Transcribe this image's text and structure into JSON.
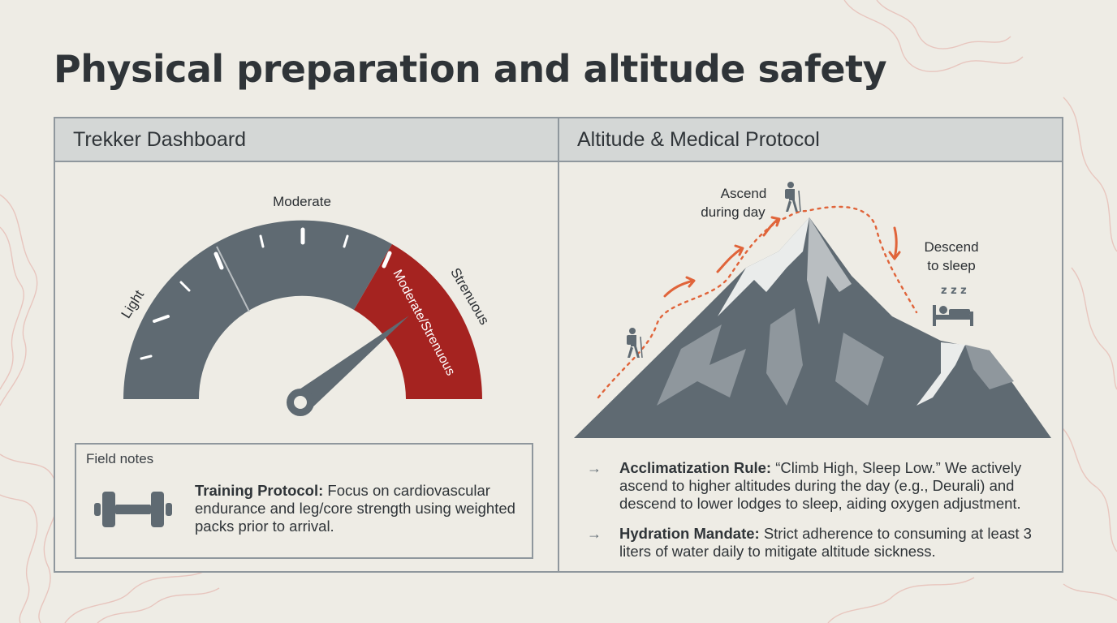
{
  "title": "Physical preparation and altitude safety",
  "left_panel": {
    "header": "Trekker Dashboard",
    "gauge": {
      "labels": [
        "Light",
        "Moderate",
        "Moderate/Strenuous",
        "Strenuous"
      ],
      "indicated_level": "Moderate/Strenuous"
    },
    "field_notes": {
      "label": "Field notes",
      "icon": "dumbbell-icon",
      "heading": "Training Protocol:",
      "text": " Focus on cardiovascular endurance and leg/core strength using weighted packs prior to arrival."
    }
  },
  "right_panel": {
    "header": "Altitude & Medical Protocol",
    "diagram": {
      "ascend_label": [
        "Ascend",
        "during day"
      ],
      "descend_label": [
        "Descend",
        "to sleep"
      ],
      "sleep_glyph": "z z z",
      "icons": [
        "hiker-icon",
        "sleep-bed-icon",
        "mountain-illustration"
      ]
    },
    "bullets": [
      {
        "heading": "Acclimatization Rule:",
        "text": " “Climb High, Sleep Low.” We actively ascend to higher altitudes during the day (e.g., Deurali) and descend to lower lodges to sleep, aiding oxygen adjustment."
      },
      {
        "heading": "Hydration Mandate:",
        "text": " Strict adherence to consuming at least 3 liters of water daily to mitigate altitude sickness."
      }
    ]
  },
  "colors": {
    "background": "#eeece5",
    "gauge_gray": "#5f6a72",
    "gauge_red": "#a52320",
    "accent_orange": "#e0643a",
    "mountain_dark": "#5f6a72",
    "mountain_mid": "#8f979d",
    "snow": "#eaeceb",
    "topo_line": "#e3a79f"
  }
}
